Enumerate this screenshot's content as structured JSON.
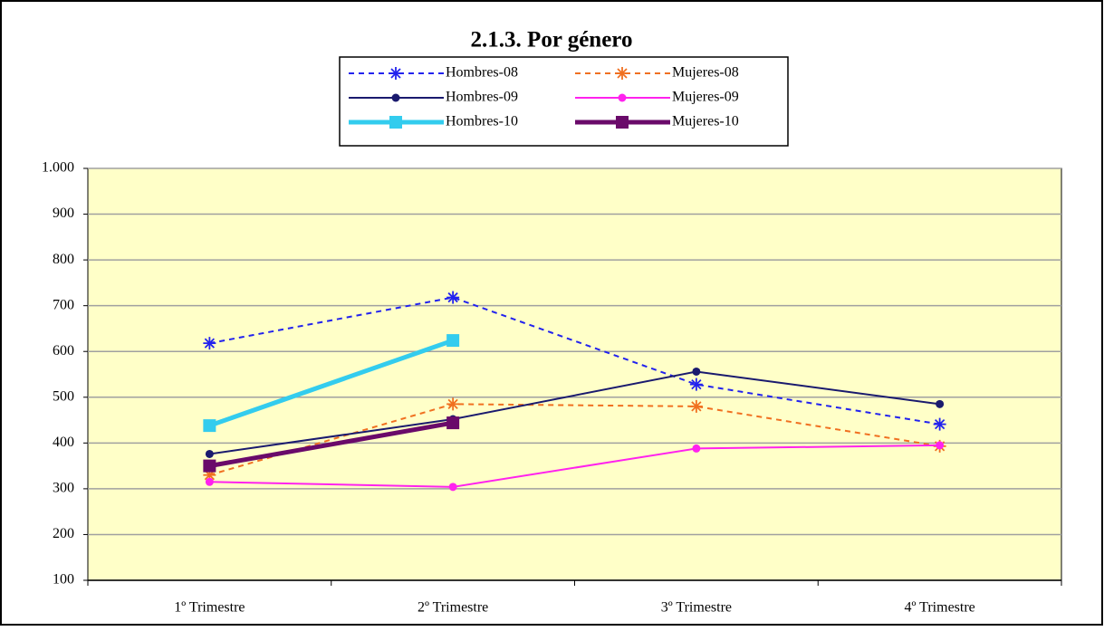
{
  "chart_data": {
    "type": "line",
    "title": "2.1.3. Por género",
    "categories": [
      "1º Trimestre",
      "2º Trimestre",
      "3º Trimestre",
      "4º Trimestre"
    ],
    "series": [
      {
        "name": "Hombres-08",
        "color": "#2222ee",
        "dash": "dashed",
        "marker": "star",
        "width": 2,
        "values": [
          618,
          718,
          528,
          441
        ]
      },
      {
        "name": "Mujeres-08",
        "color": "#f07020",
        "dash": "dashed",
        "marker": "star",
        "width": 2,
        "values": [
          330,
          485,
          480,
          393
        ]
      },
      {
        "name": "Hombres-09",
        "color": "#1a1a6e",
        "dash": "solid",
        "marker": "circle",
        "width": 2,
        "values": [
          376,
          452,
          556,
          485
        ]
      },
      {
        "name": "Mujeres-09",
        "color": "#ff22ee",
        "dash": "solid",
        "marker": "circle",
        "width": 2,
        "values": [
          315,
          304,
          388,
          395
        ]
      },
      {
        "name": "Hombres-10",
        "color": "#33ccee",
        "dash": "solid",
        "marker": "square",
        "width": 5,
        "values": [
          438,
          624,
          null,
          null
        ]
      },
      {
        "name": "Mujeres-10",
        "color": "#6a0a6a",
        "dash": "solid",
        "marker": "square",
        "width": 5,
        "values": [
          350,
          444,
          null,
          null
        ]
      }
    ],
    "ylim": [
      100,
      1000
    ],
    "yticks": [
      100,
      200,
      300,
      400,
      500,
      600,
      700,
      800,
      900,
      {
        "value": 1000,
        "label": "1.000"
      }
    ],
    "grid": true
  }
}
